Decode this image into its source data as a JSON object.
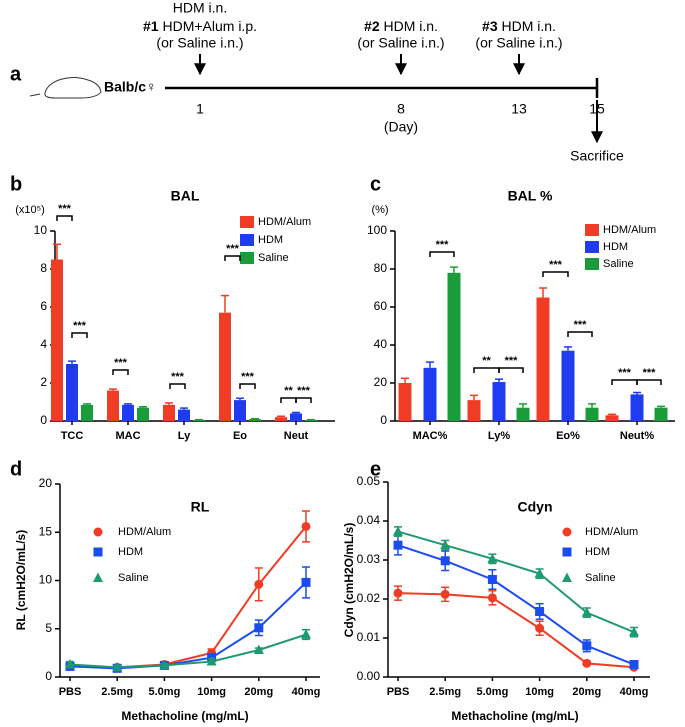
{
  "timeline": {
    "label": "a",
    "strain": "Balb/c♀",
    "events": [
      {
        "pre": "HDM i.n.",
        "num": "#1",
        "text": "HDM+Alum i.p.",
        "note": "(or Saline i.n.)",
        "day": "1"
      },
      {
        "num": "#2",
        "text": "HDM i.n.",
        "note": "(or Saline i.n.)",
        "day": "8"
      },
      {
        "num": "#3",
        "text": "HDM i.n.",
        "note": "(or Saline i.n.)",
        "day": "13"
      }
    ],
    "unit": "(Day)",
    "end": {
      "day": "15",
      "label": "Sacrifice"
    }
  },
  "chart_data": [
    {
      "type": "bar",
      "label": "b",
      "title": "BAL",
      "unit": "(x10⁵)",
      "categories": [
        "TCC",
        "MAC",
        "Ly",
        "Eo",
        "Neut"
      ],
      "series": [
        {
          "name": "HDM/Alum",
          "color": "#f03c24",
          "values": [
            8.5,
            1.6,
            0.85,
            5.7,
            0.2
          ],
          "errors": [
            0.8,
            0.08,
            0.1,
            0.9,
            0.05
          ]
        },
        {
          "name": "HDM",
          "color": "#1f3cf0",
          "values": [
            3.0,
            0.85,
            0.6,
            1.1,
            0.4
          ],
          "errors": [
            0.15,
            0.05,
            0.08,
            0.1,
            0.05
          ]
        },
        {
          "name": "Saline",
          "color": "#1a9c3a",
          "values": [
            0.85,
            0.7,
            0.05,
            0.1,
            0.05
          ],
          "errors": [
            0.05,
            0.05,
            0.02,
            0.02,
            0.02
          ]
        }
      ],
      "ylim": [
        0,
        10
      ],
      "yticks": [
        0,
        2,
        4,
        6,
        8,
        10
      ],
      "annotations": [
        "***",
        "***",
        "***",
        "***",
        "***",
        "***",
        "**",
        "***"
      ]
    },
    {
      "type": "bar",
      "label": "c",
      "title": "BAL %",
      "unit": "(%)",
      "categories": [
        "MAC%",
        "Ly%",
        "Eo%",
        "Neut%"
      ],
      "series": [
        {
          "name": "HDM/Alum",
          "color": "#f03c24",
          "values": [
            20,
            11,
            65,
            3
          ],
          "errors": [
            2.5,
            2.5,
            5,
            0.5
          ]
        },
        {
          "name": "HDM",
          "color": "#1f3cf0",
          "values": [
            28,
            20.5,
            37,
            14
          ],
          "errors": [
            3,
            1.5,
            2,
            1
          ]
        },
        {
          "name": "Saline",
          "color": "#1a9c3a",
          "values": [
            78,
            7,
            7,
            7
          ],
          "errors": [
            3,
            2,
            2,
            0.7
          ]
        }
      ],
      "ylim": [
        0,
        100
      ],
      "yticks": [
        0,
        20,
        40,
        60,
        80,
        100
      ],
      "annotations": [
        "***",
        "**",
        "***",
        "***",
        "***",
        "***",
        "***"
      ]
    },
    {
      "type": "line",
      "label": "d",
      "title": "RL",
      "ylabel": "RL (cmH2O/mL/s)",
      "xlabel": "Methacholine (mg/mL)",
      "categories": [
        "PBS",
        "2.5mg",
        "5.0mg",
        "10mg",
        "20mg",
        "40mg"
      ],
      "series": [
        {
          "name": "HDM/Alum",
          "color": "#f03c24",
          "marker": "circle",
          "values": [
            1.1,
            1.0,
            1.3,
            2.5,
            9.6,
            15.6
          ],
          "errors": [
            0.3,
            0.2,
            0.2,
            0.4,
            1.7,
            1.6
          ]
        },
        {
          "name": "HDM",
          "color": "#1b4cf0",
          "marker": "square",
          "values": [
            1.1,
            0.9,
            1.2,
            2.0,
            5.1,
            9.8
          ],
          "errors": [
            0.3,
            0.2,
            0.2,
            0.3,
            0.8,
            1.6
          ]
        },
        {
          "name": "Saline",
          "color": "#1f9a6e",
          "marker": "triangle",
          "values": [
            1.3,
            1.0,
            1.2,
            1.6,
            2.8,
            4.4
          ],
          "errors": [
            0.3,
            0.2,
            0.2,
            0.3,
            0.2,
            0.5
          ]
        }
      ],
      "ylim": [
        0,
        20
      ],
      "yticks": [
        0,
        5,
        10,
        15,
        20
      ]
    },
    {
      "type": "line",
      "label": "e",
      "title": "Cdyn",
      "ylabel": "Cdyn (cmH2O/mL/s)",
      "xlabel": "Methacholine (mg/mL)",
      "categories": [
        "PBS",
        "2.5mg",
        "5.0mg",
        "10mg",
        "20mg",
        "40mg"
      ],
      "series": [
        {
          "name": "HDM/Alum",
          "color": "#f03c24",
          "marker": "circle",
          "values": [
            0.0215,
            0.0212,
            0.0203,
            0.0125,
            0.0035,
            0.0025
          ],
          "errors": [
            0.0018,
            0.0018,
            0.0018,
            0.0018,
            0.0005,
            0.0004
          ]
        },
        {
          "name": "HDM",
          "color": "#1b4cf0",
          "marker": "square",
          "values": [
            0.0338,
            0.0298,
            0.025,
            0.0168,
            0.008,
            0.0032
          ],
          "errors": [
            0.0025,
            0.0025,
            0.0025,
            0.002,
            0.0015,
            0.0005
          ]
        },
        {
          "name": "Saline",
          "color": "#1f9a6e",
          "marker": "triangle",
          "values": [
            0.0373,
            0.0338,
            0.0303,
            0.0265,
            0.0165,
            0.0115
          ],
          "errors": [
            0.0012,
            0.0012,
            0.0012,
            0.0012,
            0.0012,
            0.0012
          ]
        }
      ],
      "ylim": [
        0,
        0.05
      ],
      "yticks": [
        {
          "value": 0,
          "label": "0.00"
        },
        0.01,
        0.02,
        0.03,
        0.04,
        0.05
      ]
    }
  ]
}
